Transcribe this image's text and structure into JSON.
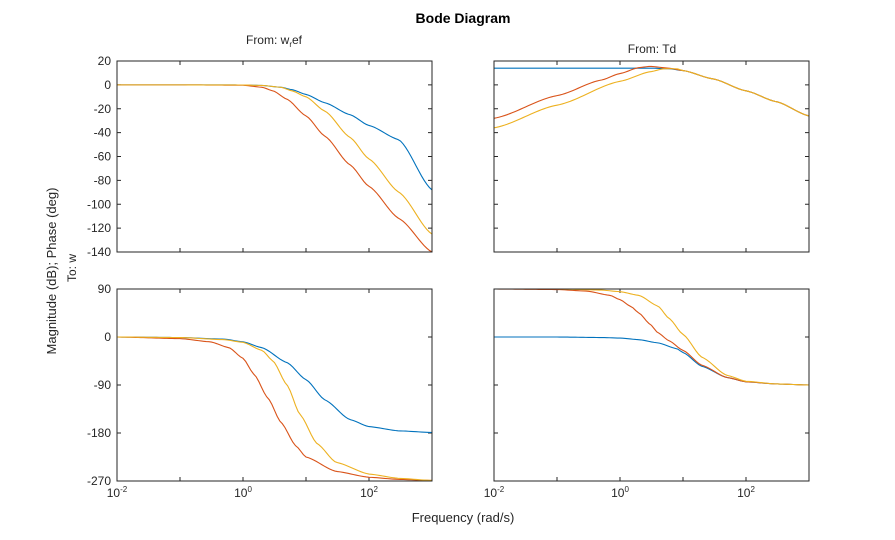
{
  "chart_data": {
    "type": "line",
    "title": "Bode Diagram",
    "xlabel": "Frequency (rad/s)",
    "ylabel": "Magnitude (dB); Phase (deg)",
    "output_label": "To: w",
    "x_scale": "log",
    "xlim": [
      0.01,
      1000
    ],
    "x_ticks": [
      {
        "base": "10",
        "exp": "-2"
      },
      {
        "base": "10",
        "exp": "0"
      },
      {
        "base": "10",
        "exp": "2"
      }
    ],
    "colors": [
      "#0072BD",
      "#D95319",
      "#EDB120"
    ],
    "columns": [
      {
        "title_main": "From: w",
        "title_sub": "r",
        "title_tail": "ef"
      },
      {
        "title_main": "From: Td",
        "title_sub": "",
        "title_tail": ""
      }
    ],
    "magnitude_axis": {
      "ylim": [
        -140,
        20
      ],
      "ticks": [
        "20",
        "0",
        "-20",
        "-40",
        "-60",
        "-80",
        "-100",
        "-120",
        "-140"
      ]
    },
    "phase_axis": {
      "ylim": [
        -270,
        90
      ],
      "ticks": [
        "90",
        "0",
        "-90",
        "-180",
        "-270"
      ]
    },
    "panels": [
      {
        "id": "mag-wref",
        "series": [
          {
            "name": "series-1",
            "x": [
              0.01,
              0.1,
              1,
              2,
              4,
              6,
              10,
              20,
              50,
              100,
              300,
              1000
            ],
            "y": [
              0,
              0,
              -0.1,
              -0.5,
              -2,
              -4,
              -8,
              -15,
              -25,
              -34,
              -46,
              -88
            ]
          },
          {
            "name": "series-2",
            "x": [
              0.01,
              0.1,
              1,
              2,
              3,
              5,
              10,
              20,
              50,
              100,
              300,
              1000
            ],
            "y": [
              0,
              0,
              -0.3,
              -2,
              -5,
              -12,
              -26,
              -43,
              -67,
              -85,
              -112,
              -140
            ]
          },
          {
            "name": "series-3",
            "x": [
              0.01,
              0.1,
              1,
              2,
              4,
              6,
              10,
              20,
              50,
              100,
              300,
              1000
            ],
            "y": [
              0,
              0,
              -0.1,
              -0.5,
              -2,
              -5,
              -10,
              -22,
              -44,
              -62,
              -90,
              -125
            ]
          }
        ]
      },
      {
        "id": "mag-td",
        "series": [
          {
            "name": "series-1",
            "x": [
              0.01,
              0.1,
              1,
              3,
              6,
              10,
              30,
              100,
              300,
              1000
            ],
            "y": [
              14,
              14,
              14,
              14,
              13.5,
              12,
              5,
              -5,
              -14,
              -26
            ]
          },
          {
            "name": "series-2",
            "x": [
              0.01,
              0.1,
              0.5,
              1,
              2,
              3,
              6,
              10,
              30,
              100,
              300,
              1000
            ],
            "y": [
              -28,
              -9,
              4,
              9.5,
              14.5,
              15.5,
              14,
              12,
              5,
              -5,
              -14,
              -26
            ]
          },
          {
            "name": "series-3",
            "x": [
              0.01,
              0.1,
              1,
              3,
              5,
              8,
              10,
              30,
              100,
              300,
              1000
            ],
            "y": [
              -36,
              -17,
              3,
              11,
              13.5,
              13.5,
              12,
              5,
              -5,
              -14,
              -26
            ]
          }
        ]
      },
      {
        "id": "phase-wref",
        "series": [
          {
            "name": "series-1",
            "x": [
              0.01,
              0.1,
              0.5,
              1,
              2,
              5,
              10,
              20,
              50,
              100,
              300,
              1000
            ],
            "y": [
              0,
              -1,
              -4,
              -9,
              -20,
              -48,
              -80,
              -118,
              -155,
              -168,
              -176,
              -179
            ]
          },
          {
            "name": "series-2",
            "x": [
              0.01,
              0.1,
              0.3,
              0.6,
              1,
              1.5,
              2.5,
              4,
              7,
              10,
              30,
              100,
              300,
              1000
            ],
            "y": [
              0,
              -3,
              -9,
              -20,
              -40,
              -70,
              -115,
              -160,
              -205,
              -225,
              -252,
              -263,
              -267,
              -269
            ]
          },
          {
            "name": "series-3",
            "x": [
              0.01,
              0.1,
              0.5,
              1,
              2,
              3,
              5,
              8,
              15,
              30,
              100,
              300,
              1000
            ],
            "y": [
              0,
              -1,
              -5,
              -10,
              -25,
              -45,
              -90,
              -145,
              -200,
              -235,
              -257,
              -265,
              -269
            ]
          }
        ]
      },
      {
        "id": "phase-td",
        "series": [
          {
            "name": "series-1",
            "x": [
              0.01,
              0.1,
              0.5,
              1,
              2,
              4,
              8,
              10,
              20,
              50,
              100,
              300,
              1000
            ],
            "y": [
              0,
              0,
              -1,
              -2,
              -5,
              -11,
              -22,
              -29,
              -55,
              -76,
              -84,
              -88,
              -90
            ]
          },
          {
            "name": "series-2",
            "x": [
              0.01,
              0.1,
              0.3,
              0.7,
              1,
              1.5,
              2,
              3,
              4,
              6,
              10,
              20,
              50,
              100,
              300,
              1000
            ],
            "y": [
              90,
              89,
              86,
              78,
              70,
              57,
              45,
              24,
              8,
              -7,
              -25,
              -53,
              -76,
              -84,
              -88,
              -90
            ]
          },
          {
            "name": "series-3",
            "x": [
              0.01,
              0.1,
              0.5,
              1,
              2,
              4,
              6,
              10,
              20,
              50,
              100,
              300,
              1000
            ],
            "y": [
              90,
              90,
              88,
              85,
              78,
              58,
              35,
              5,
              -38,
              -72,
              -83,
              -88,
              -90
            ]
          }
        ]
      }
    ]
  }
}
